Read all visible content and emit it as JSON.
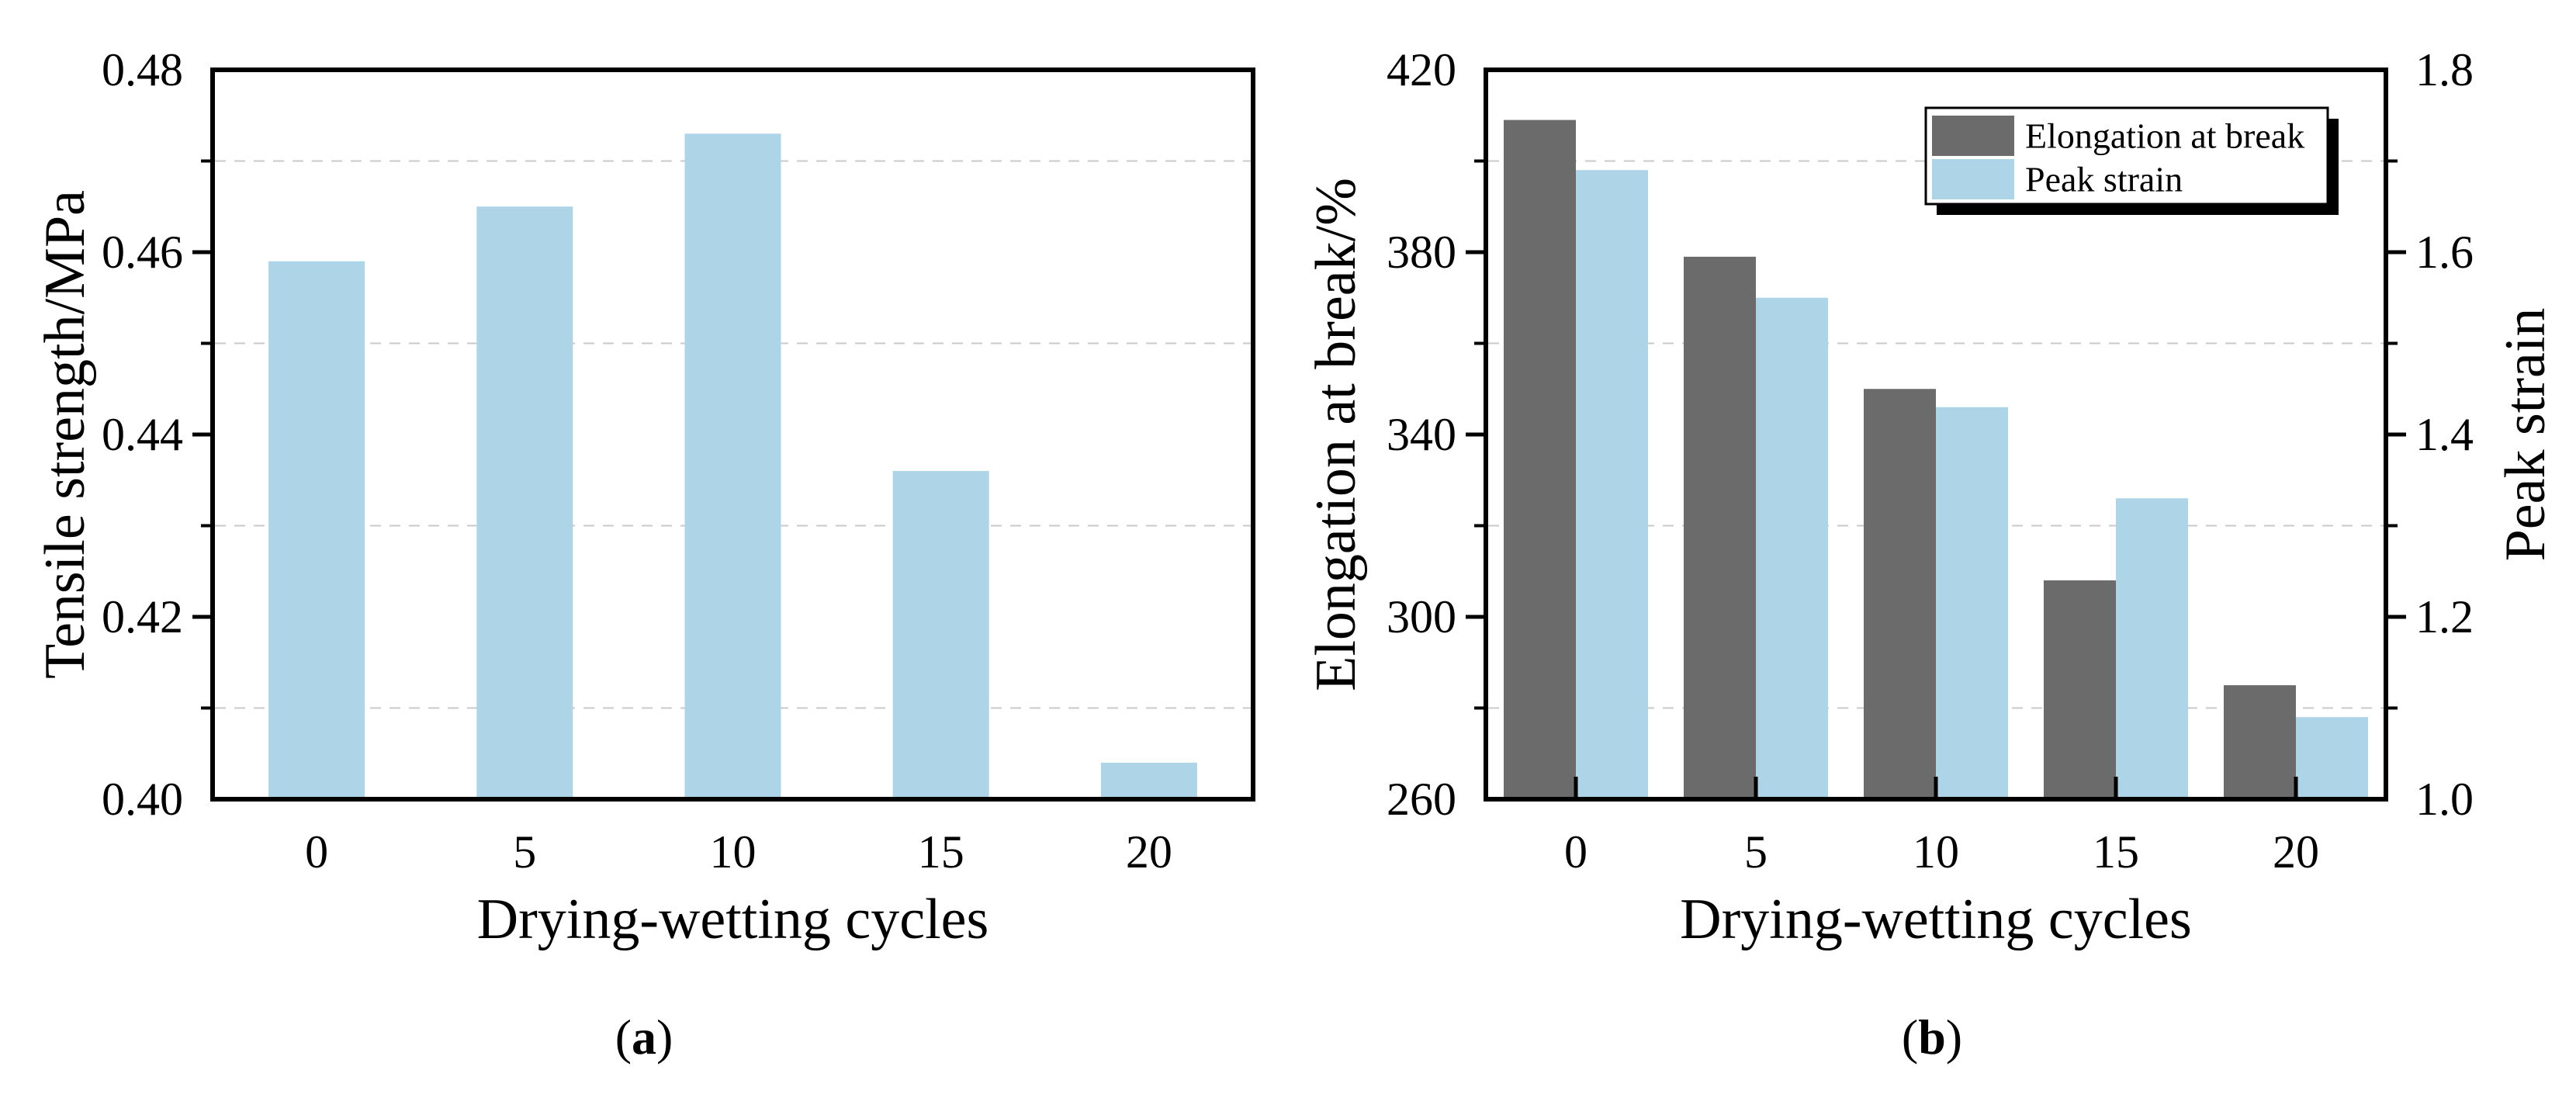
{
  "chart_data": [
    {
      "id": "a",
      "type": "bar",
      "title": "",
      "categories": [
        "0",
        "5",
        "10",
        "15",
        "20"
      ],
      "values": [
        0.459,
        0.465,
        0.473,
        0.436,
        0.404
      ],
      "xlabel": "Drying-wetting cycles",
      "ylabel": "Tensile strength/MPa",
      "ylim": [
        0.4,
        0.48
      ],
      "yticks": [
        0.4,
        0.42,
        0.44,
        0.46,
        0.48
      ],
      "ytick_labels": [
        "0.40",
        "0.42",
        "0.44",
        "0.46",
        "0.48"
      ],
      "minor_ticks": [
        0.41,
        0.43,
        0.45,
        0.47
      ],
      "gridlines": [
        0.41,
        0.43,
        0.45,
        0.47
      ],
      "grid_style": "dashed",
      "grid_on": true,
      "legend_position": "none",
      "bar_color": "#aed4e8",
      "caption": {
        "open": "(",
        "letter": "a",
        "close": ")"
      }
    },
    {
      "id": "b",
      "type": "bar",
      "title": "",
      "categories": [
        "0",
        "5",
        "10",
        "15",
        "20"
      ],
      "series": [
        {
          "name": "Elongation at break",
          "axis": "left",
          "color": "#6b6b6b",
          "values": [
            409,
            379,
            350,
            308,
            285
          ]
        },
        {
          "name": "Peak strain",
          "axis": "right",
          "color": "#aed4e8",
          "values": [
            1.69,
            1.55,
            1.43,
            1.33,
            1.09
          ]
        }
      ],
      "xlabel": "Drying-wetting cycles",
      "ylabel_left": "Elongation at break/%",
      "ylabel_right": "Peak strain",
      "ylim_left": [
        260,
        420
      ],
      "yticks_left": [
        260,
        300,
        340,
        380,
        420
      ],
      "ytick_labels_left": [
        "260",
        "300",
        "340",
        "380",
        "420"
      ],
      "minor_ticks_left": [
        280,
        320,
        360,
        400
      ],
      "ylim_right": [
        1.0,
        1.8
      ],
      "yticks_right": [
        1.0,
        1.2,
        1.4,
        1.6,
        1.8
      ],
      "ytick_labels_right": [
        "1.0",
        "1.2",
        "1.4",
        "1.6",
        "1.8"
      ],
      "minor_ticks_right": [
        1.1,
        1.3,
        1.5,
        1.7
      ],
      "gridlines_left": [
        280,
        320,
        360,
        400
      ],
      "grid_style": "dashed",
      "grid_on": true,
      "legend_position": "top-right",
      "legend_entries": [
        "Elongation at break",
        "Peak strain"
      ],
      "caption": {
        "open": "(",
        "letter": "b",
        "close": ")"
      }
    }
  ],
  "colors": {
    "axis": "#000000",
    "grid": "#c9c9c9",
    "background": "#ffffff",
    "bar_blue": "#aed4e8",
    "bar_gray": "#6b6b6b",
    "legend_shadow": "#000000",
    "legend_background": "#ffffff"
  }
}
